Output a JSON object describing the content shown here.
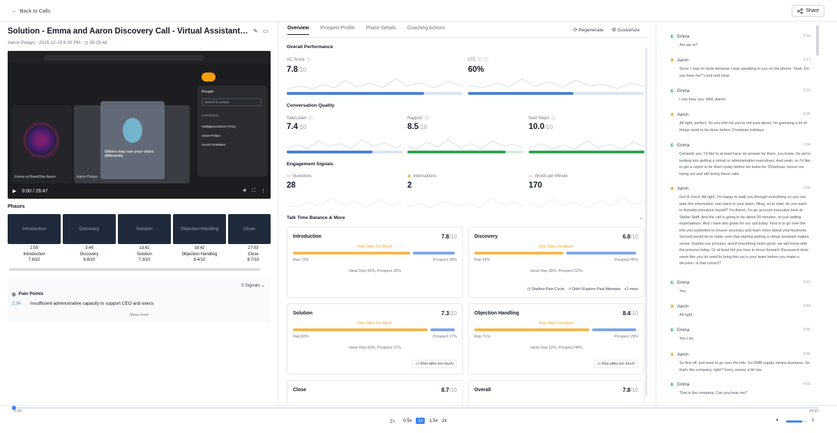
{
  "header": {
    "back_label": "Back to Calls",
    "share_label": "Share"
  },
  "call": {
    "title": "Solution - Emma and Aaron Discovery Call - Virtual Assistant Com...",
    "rep": "Aaron Pelayo",
    "datetime": "2025-12-23 6:30 PM",
    "duration": "35:29:48"
  },
  "video": {
    "time": "0:00 / 29:47",
    "panel_title": "People",
    "search_placeholder": "Search for people",
    "tile_warning": "Others may see your video differently",
    "tile_left_name": "Emma at ResellStar Aaron",
    "tile_mid_name": "Aaron Pelayo",
    "participants_label": "Contributors",
    "participants": [
      "Intelligence:dvhAI (Trns)",
      "Aaron Pelayo",
      "Ascent Notetaker"
    ]
  },
  "phases": {
    "heading": "Phases",
    "items": [
      {
        "name": "Introduction",
        "time": "2:55",
        "label": "Introduction",
        "score": "7.8/10"
      },
      {
        "name": "Discovery",
        "time": "3:46",
        "label": "Discovery",
        "score": "6.8/10"
      },
      {
        "name": "Solution",
        "time": "13:61",
        "label": "Solution",
        "score": "7.3/10"
      },
      {
        "name": "Objection Handling",
        "time": "18:42",
        "label": "Objection Handling",
        "score": "8.4/10"
      },
      {
        "name": "Close",
        "time": "27:03",
        "label": "Close",
        "score": "8.7/10"
      }
    ]
  },
  "signals": {
    "count_label": "5 Signals",
    "pain_heading": "Pain Points",
    "pain_time": "2:34",
    "pain_text": "Insufficient administrative capacity to support CEO and execs",
    "show_more": "Show more"
  },
  "tabs": [
    "Overview",
    "Prospect Profile",
    "Phase Details",
    "Coaching Actions"
  ],
  "actions": {
    "regenerate": "Regenerate",
    "customize": "Customize"
  },
  "overall": {
    "heading": "Overall Performance",
    "ac_label": "AC Score",
    "ac_value": "7.8",
    "ac_of": "/10",
    "ac_fill": 0.78,
    "ltc_label": "LTC",
    "ltc_value": "60%",
    "ltc_fill": 0.6
  },
  "quality": {
    "heading": "Conversation Quality",
    "items": [
      {
        "label": "Talk/Listen",
        "value": "7.4",
        "of": "/10",
        "fill": 0.74,
        "color": "#4a7fd4"
      },
      {
        "label": "Rapport",
        "value": "8.5",
        "of": "/10",
        "fill": 0.85,
        "color": "#2ea44f"
      },
      {
        "label": "Next Steps",
        "value": "10.0",
        "of": "/10",
        "fill": 1.0,
        "color": "#2ea44f"
      }
    ]
  },
  "engagement": {
    "heading": "Engagement Signals",
    "items": [
      {
        "label": "Questions",
        "value": "28"
      },
      {
        "label": "Interruptions",
        "value": "2"
      },
      {
        "label": "Words per Minute",
        "value": "170"
      }
    ]
  },
  "balance": {
    "heading": "Talk Time Balance & More"
  },
  "cards": [
    {
      "title": "Introduction",
      "score": "7.8",
      "of": "/10",
      "warn": "Rep Talks Too Much",
      "rep": "Rep 72%",
      "prospect": "Prospect 28%",
      "rep_pct": 72,
      "ideal": "Ideal: Rep 65%, Prospect 35%",
      "tags": []
    },
    {
      "title": "Discovery",
      "score": "6.8",
      "of": "/10",
      "warn": "Rep Talks Too Much",
      "rep": "Rep 55%",
      "prospect": "Prospect 45%",
      "rep_pct": 55,
      "ideal": "Ideal: Rep 38%, Prospect 62%",
      "tags": [
        "Shallow Pain Cycle",
        "Didn't Explore Past Attempts",
        "+1 more"
      ]
    },
    {
      "title": "Solution",
      "score": "7.3",
      "of": "/10",
      "warn": "Rep Talks Too Much",
      "rep": "Rep 83%",
      "prospect": "Prospect 17%",
      "rep_pct": 83,
      "ideal": "Ideal: Rep 63%, Prospect 37%",
      "tags": [
        "Rep talks too much"
      ]
    },
    {
      "title": "Objection Handling",
      "score": "8.4",
      "of": "/10",
      "warn": "Rep Talks Too Much",
      "rep": "Rep 71%",
      "prospect": "Prospect 29%",
      "rep_pct": 71,
      "ideal": "Ideal: Rep 52%, Prospect 48%",
      "tags": [
        "Rep talks too much"
      ]
    },
    {
      "title": "Close",
      "score": "8.7",
      "of": "/10"
    },
    {
      "title": "Overall",
      "score": "7.8",
      "of": "/10"
    }
  ],
  "transcript": [
    {
      "speaker": "Emma",
      "initial": "E",
      "time": "3:16",
      "text": "Are we in?"
    },
    {
      "speaker": "Aaron",
      "initial": "A",
      "time": "3:17",
      "text": "Sorry, I was on mute because I was speaking to you on the phone. Yeah. Do you hear me? Loud and clear."
    },
    {
      "speaker": "Emma",
      "initial": "E",
      "time": "3:23",
      "text": "I can hear you. Well, Aaron."
    },
    {
      "speaker": "Aaron",
      "initial": "A",
      "time": "3:26",
      "text": "All right, perfect. So you told me you're not sure about, I'm guessing a lot of things need to be done before Christmas holidays."
    },
    {
      "speaker": "Emma",
      "initial": "E",
      "time": "3:34",
      "text": "Certainly yes. I'd like to at least have an answer for them, you know. So we're looking into getting a virtual or administrative executives. And yeah, so I'd like to get a report in for them today before we leave for Christmas, hence me being out and still doing these calls."
    },
    {
      "speaker": "Aaron",
      "initial": "A",
      "time": "3:56",
      "text": "Got it! Got it. All right, I'm happy to walk you through everything so you can take this information over back to your team. Okay, so to start, do you want to formally introduce myself? I'm Aaron, I'm an account executive here at Stellar Staff. And the call is going to be about 30 minutes, so just setting expectations. And I have two goals for our call today. First is to go over the info you submitted to ensure accuracy and learn more about your business. Second would be to make sure that starting getting a virtual assistant makes sense. Explain our process, and if everything looks good, we will move with the process today. Or at least tell you how to move forward. Because it does seem like you do need to bring this up to your team before you make a decision. Is that correct?"
    },
    {
      "speaker": "Emma",
      "initial": "E",
      "time": "3:42",
      "text": "Yes."
    },
    {
      "speaker": "Aaron",
      "initial": "A",
      "time": "3:44",
      "text": "All right."
    },
    {
      "speaker": "Emma",
      "initial": "E",
      "time": "3:45",
      "text": "Yes I do."
    },
    {
      "speaker": "Aaron",
      "initial": "A",
      "time": "3:46",
      "text": "So first off, just want to go over the info. So DMB supply means business. So that's the company, right? Sorry, seems a bit low."
    },
    {
      "speaker": "Emma",
      "initial": "E",
      "time": "4:01",
      "text": "That is the company. Can you hear me?"
    }
  ],
  "player": {
    "current": "0:00",
    "total": "29:47",
    "speeds": [
      "0.5x",
      "1x",
      "1.5x",
      "2x"
    ],
    "active_speed": "1x",
    "progress": 0.0,
    "volume": 0.75
  }
}
